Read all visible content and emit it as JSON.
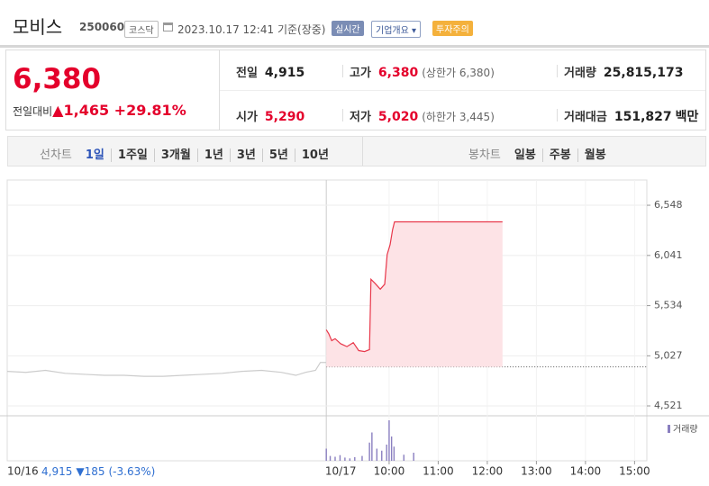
{
  "header": {
    "name": "모비스",
    "code": "250060",
    "market": "코스닥",
    "timestamp": "2023.10.17 12:41",
    "status": "기준(장중)",
    "badges": {
      "realtime": "실시간",
      "overview": "기업개요",
      "warning": "투자주의"
    }
  },
  "quote": {
    "price": "6,380",
    "change_label": "전일대비",
    "change": "1,465",
    "rate": "+29.81%",
    "rows": [
      [
        {
          "label": "전일",
          "value": "4,915"
        },
        {
          "label": "고가",
          "value": "6,380",
          "note": "(상한가 6,380)"
        },
        {
          "label": "거래량",
          "value": "25,815,173"
        }
      ],
      [
        {
          "label": "시가",
          "value": "5,290"
        },
        {
          "label": "저가",
          "value": "5,020",
          "note": "(하한가 3,445)"
        },
        {
          "label": "거래대금",
          "value": "151,827",
          "unit": "백만"
        }
      ]
    ]
  },
  "tabs": {
    "line": {
      "label": "선차트",
      "items": [
        "1일",
        "1주일",
        "3개월",
        "1년",
        "3년",
        "5년",
        "10년"
      ],
      "selected": 0
    },
    "candle": {
      "label": "봉차트",
      "items": [
        "일봉",
        "주봉",
        "월봉"
      ]
    }
  },
  "chart_data": {
    "type": "line",
    "xlim": [
      2.22,
      15.25
    ],
    "ylim": [
      4421,
      6803
    ],
    "yticks": [
      {
        "value": 6548,
        "label": "6,548"
      },
      {
        "value": 6041,
        "label": "6,041"
      },
      {
        "value": 5534,
        "label": "5,534"
      },
      {
        "value": 5027,
        "label": "5,027"
      },
      {
        "value": 4521,
        "label": "4,521"
      }
    ],
    "xticks": [
      {
        "value": 10,
        "label": "10:00"
      },
      {
        "value": 11,
        "label": "11:00"
      },
      {
        "value": 12,
        "label": "12:00"
      },
      {
        "value": 13,
        "label": "13:00"
      },
      {
        "value": 14,
        "label": "14:00"
      },
      {
        "value": 15,
        "label": "15:00"
      }
    ],
    "grid": true,
    "baseline_color": "#555555",
    "fill_color": "#fde3e6",
    "series": [
      {
        "color": "#cccccc",
        "x": [
          2.22,
          2.6,
          3.0,
          3.4,
          3.8,
          4.2,
          4.6,
          5.0,
          5.4,
          5.8,
          6.2,
          6.6,
          7.0,
          7.4,
          7.8,
          8.1,
          8.3,
          8.5,
          8.6,
          8.72
        ],
        "values": [
          4870,
          4860,
          4880,
          4850,
          4840,
          4830,
          4830,
          4820,
          4820,
          4830,
          4840,
          4850,
          4870,
          4880,
          4860,
          4830,
          4860,
          4880,
          4960,
          4960
        ]
      },
      {
        "color": "#e8374a",
        "x": [
          8.72,
          8.77,
          8.83,
          8.9,
          9.01,
          9.14,
          9.27,
          9.38,
          9.5,
          9.6,
          9.63,
          9.71,
          9.82,
          9.91,
          9.96,
          10.02,
          10.07,
          10.11,
          12.31
        ],
        "values": [
          5290,
          5250,
          5180,
          5200,
          5150,
          5120,
          5160,
          5080,
          5070,
          5090,
          5800,
          5760,
          5700,
          5750,
          6050,
          6150,
          6300,
          6380,
          6380
        ]
      }
    ],
    "volume": {
      "name": "거래량",
      "color": "#8a7fc0",
      "vlim": [
        0,
        100
      ],
      "x": [
        8.72,
        8.8,
        8.9,
        9.0,
        9.1,
        9.2,
        9.3,
        9.45,
        9.6,
        9.65,
        9.75,
        9.85,
        9.95,
        10.0,
        10.05,
        10.1,
        10.3,
        10.5
      ],
      "values": [
        30,
        12,
        10,
        14,
        8,
        6,
        9,
        12,
        45,
        70,
        30,
        25,
        40,
        100,
        60,
        35,
        15,
        20
      ]
    },
    "dates": {
      "prev": "10/16",
      "today": "10/17"
    },
    "prev_day": {
      "close": "4,915",
      "change": "▼185",
      "rate": "(-3.63%)"
    }
  }
}
